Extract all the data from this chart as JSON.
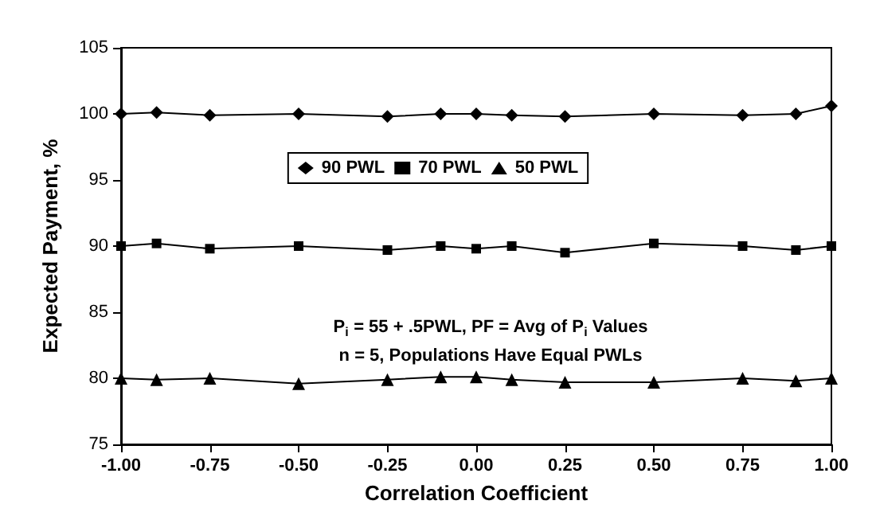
{
  "chart_data": {
    "type": "line",
    "xlabel": "Correlation Coefficient",
    "ylabel": "Expected Payment, %",
    "x": [
      -1,
      -0.9,
      -0.75,
      -0.5,
      -0.25,
      -0.1,
      0,
      0.1,
      0.25,
      0.5,
      0.75,
      0.9,
      1
    ],
    "series": [
      {
        "name": "90 PWL",
        "color": "#000000",
        "marker": "diamond",
        "values": [
          100,
          100.1,
          99.9,
          100,
          99.8,
          100,
          100,
          99.9,
          99.8,
          100,
          99.9,
          100,
          100.6
        ]
      },
      {
        "name": "70 PWL",
        "color": "#000000",
        "marker": "square",
        "values": [
          90,
          90.2,
          89.8,
          90,
          89.7,
          90,
          89.8,
          90,
          89.5,
          90.2,
          90,
          89.7,
          90
        ]
      },
      {
        "name": "50 PWL",
        "color": "#000000",
        "marker": "triangle",
        "values": [
          80,
          79.9,
          80,
          79.6,
          79.9,
          80.1,
          80.1,
          79.9,
          79.7,
          79.7,
          80,
          79.8,
          80
        ]
      }
    ],
    "xlim": [
      -1,
      1
    ],
    "xticks": [
      {
        "value": -1,
        "label": "-1.00"
      },
      {
        "value": -0.75,
        "label": "-0.75"
      },
      {
        "value": -0.5,
        "label": "-0.50"
      },
      {
        "value": -0.25,
        "label": "-0.25"
      },
      {
        "value": 0,
        "label": "0.00"
      },
      {
        "value": 0.25,
        "label": "0.25"
      },
      {
        "value": 0.5,
        "label": "0.50"
      },
      {
        "value": 0.75,
        "label": "0.75"
      },
      {
        "value": 1,
        "label": "1.00"
      }
    ],
    "ylim": [
      75,
      105
    ],
    "yticks": [
      75,
      80,
      85,
      90,
      95,
      100,
      105
    ],
    "grid": false,
    "legend": "top",
    "line_style": "solid",
    "annotations": [
      "P$_{i}$ = 55 + .5PWL, PF = Avg of P$_{i}$ Values",
      "n = 5, Populations Have Equal PWLs"
    ]
  }
}
